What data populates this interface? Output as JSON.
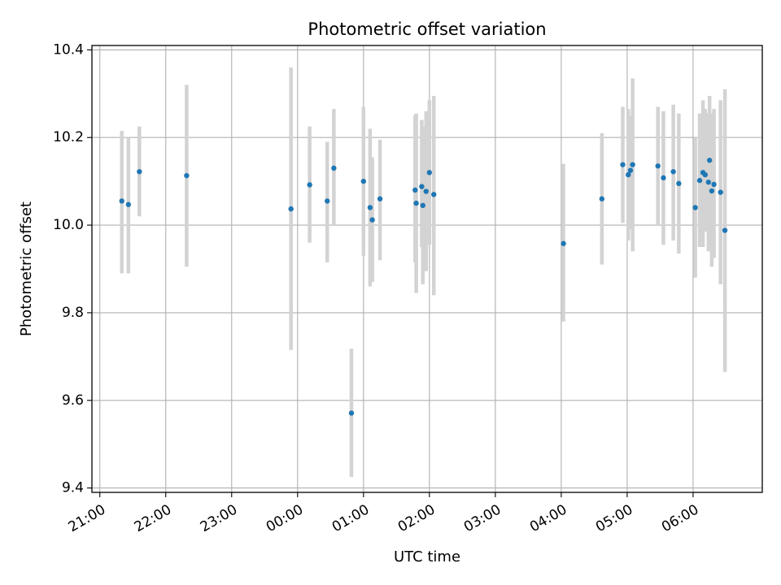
{
  "chart_data": {
    "type": "scatter",
    "title": "Photometric offset variation",
    "xlabel": "UTC time",
    "ylabel": "Photometric offset",
    "x_axis_kind": "time (hours since 21:00 UTC)",
    "xlim": [
      -0.12,
      10.05
    ],
    "ylim": [
      9.39,
      10.41
    ],
    "grid": true,
    "x_ticks": [
      {
        "v": 0,
        "label": "21:00"
      },
      {
        "v": 1,
        "label": "22:00"
      },
      {
        "v": 2,
        "label": "23:00"
      },
      {
        "v": 3,
        "label": "00:00"
      },
      {
        "v": 4,
        "label": "01:00"
      },
      {
        "v": 5,
        "label": "02:00"
      },
      {
        "v": 6,
        "label": "03:00"
      },
      {
        "v": 7,
        "label": "04:00"
      },
      {
        "v": 8,
        "label": "05:00"
      },
      {
        "v": 9,
        "label": "06:00"
      }
    ],
    "y_ticks": [
      {
        "v": 9.4,
        "label": "9.4"
      },
      {
        "v": 9.6,
        "label": "9.6"
      },
      {
        "v": 9.8,
        "label": "9.8"
      },
      {
        "v": 10.0,
        "label": "10.0"
      },
      {
        "v": 10.2,
        "label": "10.2"
      },
      {
        "v": 10.4,
        "label": "10.4"
      }
    ],
    "series": [
      {
        "marker_color": "#1f77b4",
        "errorbar_color": "#d3d3d3",
        "points": [
          {
            "x": "21:20",
            "y": 10.055,
            "lo": 9.89,
            "hi": 10.215
          },
          {
            "x": "21:26",
            "y": 10.047,
            "lo": 9.89,
            "hi": 10.2
          },
          {
            "x": "21:36",
            "y": 10.122,
            "lo": 10.02,
            "hi": 10.225
          },
          {
            "x": "22:19",
            "y": 10.113,
            "lo": 9.905,
            "hi": 10.32
          },
          {
            "x": "23:54",
            "y": 10.037,
            "lo": 9.715,
            "hi": 10.36
          },
          {
            "x": "00:11",
            "y": 10.092,
            "lo": 9.96,
            "hi": 10.225
          },
          {
            "x": "00:27",
            "y": 10.055,
            "lo": 9.915,
            "hi": 10.19
          },
          {
            "x": "00:33",
            "y": 10.13,
            "lo": 10.0,
            "hi": 10.265
          },
          {
            "x": "00:49",
            "y": 9.571,
            "lo": 9.425,
            "hi": 9.718
          },
          {
            "x": "01:00",
            "y": 10.1,
            "lo": 9.93,
            "hi": 10.27
          },
          {
            "x": "01:06",
            "y": 10.04,
            "lo": 9.86,
            "hi": 10.22
          },
          {
            "x": "01:08",
            "y": 10.012,
            "lo": 9.87,
            "hi": 10.155
          },
          {
            "x": "01:15",
            "y": 10.06,
            "lo": 9.92,
            "hi": 10.195
          },
          {
            "x": "01:47",
            "y": 10.08,
            "lo": 9.915,
            "hi": 10.25
          },
          {
            "x": "01:48",
            "y": 10.05,
            "lo": 9.845,
            "hi": 10.255
          },
          {
            "x": "01:53",
            "y": 10.088,
            "lo": 9.95,
            "hi": 10.24
          },
          {
            "x": "01:54",
            "y": 10.045,
            "lo": 9.865,
            "hi": 10.225
          },
          {
            "x": "01:57",
            "y": 10.077,
            "lo": 9.895,
            "hi": 10.26
          },
          {
            "x": "02:00",
            "y": 10.12,
            "lo": 9.955,
            "hi": 10.285
          },
          {
            "x": "02:04",
            "y": 10.07,
            "lo": 9.84,
            "hi": 10.295
          },
          {
            "x": "04:02",
            "y": 9.958,
            "lo": 9.78,
            "hi": 10.14
          },
          {
            "x": "04:37",
            "y": 10.06,
            "lo": 9.91,
            "hi": 10.21
          },
          {
            "x": "04:56",
            "y": 10.138,
            "lo": 10.005,
            "hi": 10.27
          },
          {
            "x": "05:01",
            "y": 10.115,
            "lo": 9.965,
            "hi": 10.265
          },
          {
            "x": "05:03",
            "y": 10.125,
            "lo": 9.99,
            "hi": 10.25
          },
          {
            "x": "05:05",
            "y": 10.138,
            "lo": 9.94,
            "hi": 10.335
          },
          {
            "x": "05:28",
            "y": 10.135,
            "lo": 10.0,
            "hi": 10.27
          },
          {
            "x": "05:33",
            "y": 10.108,
            "lo": 9.955,
            "hi": 10.26
          },
          {
            "x": "05:42",
            "y": 10.122,
            "lo": 9.965,
            "hi": 10.275
          },
          {
            "x": "05:47",
            "y": 10.095,
            "lo": 9.935,
            "hi": 10.255
          },
          {
            "x": "06:02",
            "y": 10.04,
            "lo": 9.88,
            "hi": 10.2
          },
          {
            "x": "06:06",
            "y": 10.102,
            "lo": 9.95,
            "hi": 10.255
          },
          {
            "x": "06:09",
            "y": 10.12,
            "lo": 9.95,
            "hi": 10.285
          },
          {
            "x": "06:11",
            "y": 10.115,
            "lo": 9.985,
            "hi": 10.265
          },
          {
            "x": "06:14",
            "y": 10.098,
            "lo": 9.94,
            "hi": 10.255
          },
          {
            "x": "06:15",
            "y": 10.148,
            "lo": 9.995,
            "hi": 10.295
          },
          {
            "x": "06:17",
            "y": 10.078,
            "lo": 9.905,
            "hi": 10.255
          },
          {
            "x": "06:19",
            "y": 10.093,
            "lo": 9.925,
            "hi": 10.265
          },
          {
            "x": "06:25",
            "y": 10.075,
            "lo": 9.865,
            "hi": 10.285
          },
          {
            "x": "06:29",
            "y": 9.988,
            "lo": 9.665,
            "hi": 10.31
          }
        ]
      }
    ]
  }
}
